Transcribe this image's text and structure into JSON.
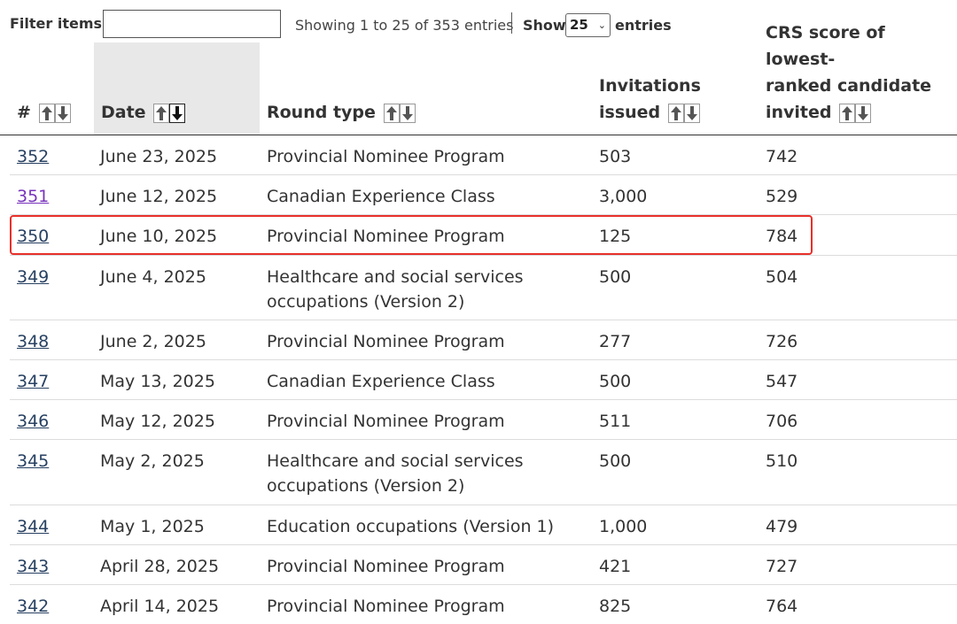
{
  "controls": {
    "filter_label": "Filter items",
    "filter_value": "",
    "showing_text": "Showing 1 to 25 of 353 entries",
    "show_label": "Show",
    "show_value": "25",
    "entries_label": "entries"
  },
  "table": {
    "headers": {
      "num": "#",
      "date": "Date",
      "round_type": "Round type",
      "invitations_line1": "Invitations",
      "invitations_line2": "issued",
      "crs_line1": "CRS score of lowest-",
      "crs_line2": "ranked candidate",
      "crs_line3": "invited"
    },
    "sorted_column": "date",
    "sorted_direction": "descending",
    "rows": [
      {
        "num": "352",
        "date": "June 23, 2025",
        "type_line1": "Provincial Nominee Program",
        "type_line2": "",
        "invitations": "503",
        "crs": "742"
      },
      {
        "num": "351",
        "date": "June 12, 2025",
        "type_line1": "Canadian Experience Class",
        "type_line2": "",
        "invitations": "3,000",
        "crs": "529"
      },
      {
        "num": "350",
        "date": "June 10, 2025",
        "type_line1": "Provincial Nominee Program",
        "type_line2": "",
        "invitations": "125",
        "crs": "784"
      },
      {
        "num": "349",
        "date": "June 4, 2025",
        "type_line1": "Healthcare and social services",
        "type_line2": "occupations (Version 2)",
        "invitations": "500",
        "crs": "504"
      },
      {
        "num": "348",
        "date": "June 2, 2025",
        "type_line1": "Provincial Nominee Program",
        "type_line2": "",
        "invitations": "277",
        "crs": "726"
      },
      {
        "num": "347",
        "date": "May 13, 2025",
        "type_line1": "Canadian Experience Class",
        "type_line2": "",
        "invitations": "500",
        "crs": "547"
      },
      {
        "num": "346",
        "date": "May 12, 2025",
        "type_line1": "Provincial Nominee Program",
        "type_line2": "",
        "invitations": "511",
        "crs": "706"
      },
      {
        "num": "345",
        "date": "May 2, 2025",
        "type_line1": "Healthcare and social services",
        "type_line2": "occupations (Version 2)",
        "invitations": "500",
        "crs": "510"
      },
      {
        "num": "344",
        "date": "May 1, 2025",
        "type_line1": "Education occupations (Version 1)",
        "type_line2": "",
        "invitations": "1,000",
        "crs": "479"
      },
      {
        "num": "343",
        "date": "April 28, 2025",
        "type_line1": "Provincial Nominee Program",
        "type_line2": "",
        "invitations": "421",
        "crs": "727"
      },
      {
        "num": "342",
        "date": "April 14, 2025",
        "type_line1": "Provincial Nominee Program",
        "type_line2": "",
        "invitations": "825",
        "crs": "764"
      }
    ]
  },
  "colors": {
    "link": "#284162",
    "visited_link": "#7834bc",
    "highlight_border": "#e8302a",
    "sorted_header_bg": "#e8e8e8"
  }
}
